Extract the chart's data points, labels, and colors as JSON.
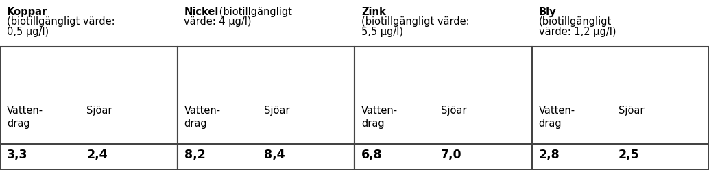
{
  "columns": [
    {
      "header_bold": "Koppar",
      "header_rest_line1": "",
      "header_line2": "(biotillgängligt värde:",
      "header_line3": "0,5 µg/l)",
      "sub1": "Vatten-\ndrag",
      "sub2": "Sjöar",
      "val1": "3,3",
      "val2": "2,4"
    },
    {
      "header_bold": "Nickel",
      "header_rest_line1": " (biotillgängligt",
      "header_line2": "värde: 4 µg/l)",
      "header_line3": "",
      "sub1": "Vatten-\ndrag",
      "sub2": "Sjöar",
      "val1": "8,2",
      "val2": "8,4"
    },
    {
      "header_bold": "Zink",
      "header_rest_line1": "",
      "header_line2": "(biotillgängligt värde:",
      "header_line3": "5,5 µg/l)",
      "sub1": "Vatten-\ndrag",
      "sub2": "Sjöar",
      "val1": "6,8",
      "val2": "7,0"
    },
    {
      "header_bold": "Bly",
      "header_rest_line1": "",
      "header_line2": "(biotillgängligt",
      "header_line3": "värde: 1,2 µg/l)",
      "sub1": "Vatten-\ndrag",
      "sub2": "Sjöar",
      "val1": "2,8",
      "val2": "2,5"
    }
  ],
  "bg_color": "#ffffff",
  "header_bg": "#ffffff",
  "row_bg": "#ddeef8",
  "border_color": "#444444",
  "text_color": "#000000",
  "header_fontsize": 10.5,
  "sub_fontsize": 10.5,
  "val_fontsize": 12.5,
  "fig_width": 10.34,
  "fig_height": 2.48,
  "dpi": 100
}
